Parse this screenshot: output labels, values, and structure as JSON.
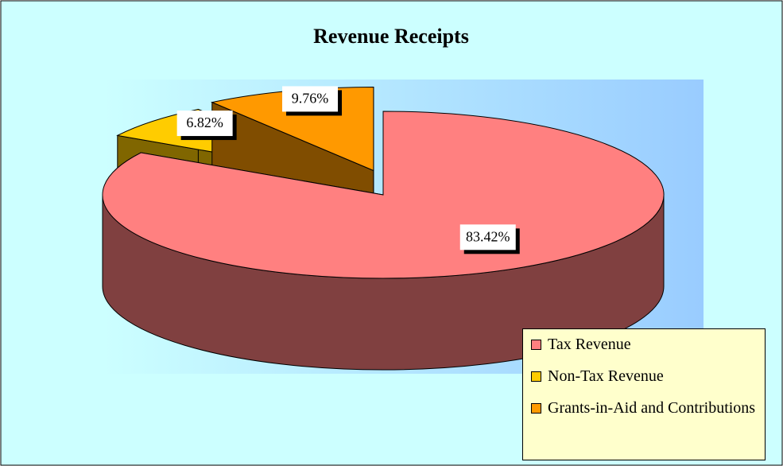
{
  "chart_data": {
    "type": "pie",
    "title": "Revenue Receipts",
    "categories": [
      "Tax Revenue",
      "Non-Tax Revenue",
      "Grants-in-Aid and Contributions"
    ],
    "values": [
      83.42,
      6.82,
      9.76
    ],
    "value_labels": [
      "83.42%",
      "6.82%",
      "9.76%"
    ],
    "colors": [
      "#ff8080",
      "#ffcc00",
      "#ff9900"
    ],
    "legend": "bottom-right"
  }
}
